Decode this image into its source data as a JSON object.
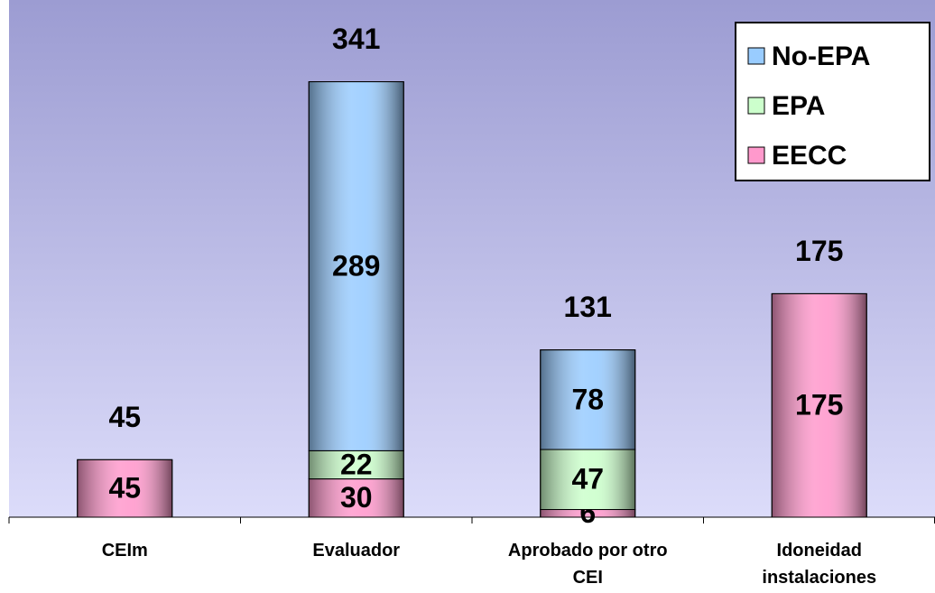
{
  "chart_data": {
    "type": "stacked_bar",
    "categories": [
      "CEIm",
      "Evaluador",
      "Aprobado por otro CEI",
      "Idoneidad instalaciones"
    ],
    "series": [
      {
        "name": "EECC",
        "color": "#ff99cc",
        "values": [
          45,
          30,
          6,
          175
        ]
      },
      {
        "name": "EPA",
        "color": "#ccffcc",
        "values": [
          null,
          22,
          47,
          null
        ]
      },
      {
        "name": "No-EPA",
        "color": "#99ccff",
        "values": [
          null,
          289,
          78,
          null
        ]
      }
    ],
    "totals": [
      45,
      341,
      131,
      175
    ],
    "ylim": [
      0,
      405
    ],
    "legend": "top-right"
  }
}
